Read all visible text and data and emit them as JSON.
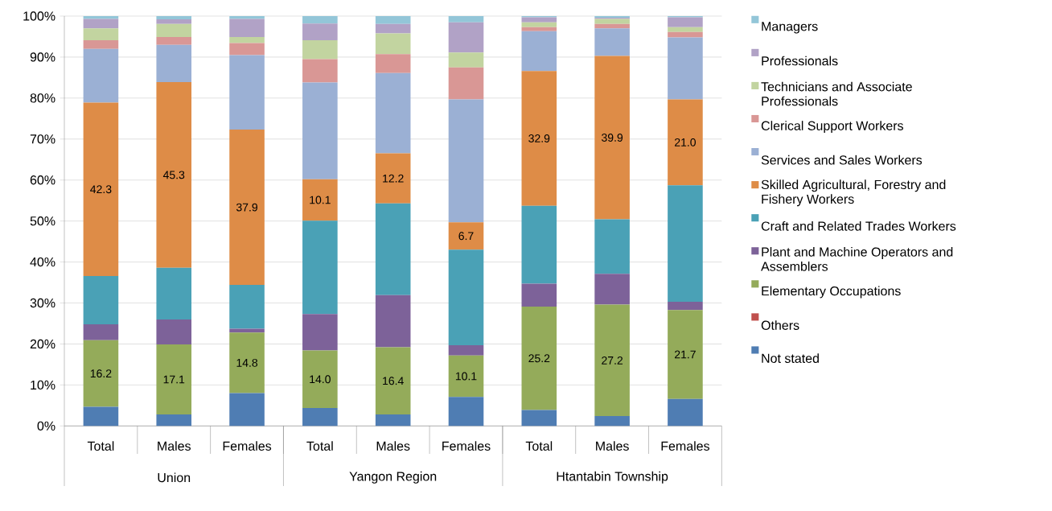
{
  "chart_data": {
    "type": "bar",
    "stacked": true,
    "categories": [
      "Total",
      "Males",
      "Females",
      "Total",
      "Males",
      "Females",
      "Total",
      "Males",
      "Females"
    ],
    "annotations": [
      "Union",
      "Yangon Region",
      "Htantabin Township"
    ],
    "ylim": [
      0,
      100
    ],
    "yticks": [
      {
        "value": 0,
        "label": "0%"
      },
      {
        "value": 10,
        "label": "10%"
      },
      {
        "value": 20,
        "label": "20%"
      },
      {
        "value": 30,
        "label": "30%"
      },
      {
        "value": 40,
        "label": "40%"
      },
      {
        "value": 50,
        "label": "50%"
      },
      {
        "value": 60,
        "label": "60%"
      },
      {
        "value": 70,
        "label": "70%"
      },
      {
        "value": 80,
        "label": "80%"
      },
      {
        "value": 90,
        "label": "90%"
      },
      {
        "value": 100,
        "label": "100%"
      }
    ],
    "grid": "y",
    "legend": "right",
    "series": [
      {
        "name": "Not stated",
        "color": "#4f7db3",
        "values": [
          4.7,
          2.8,
          8.0,
          4.4,
          2.8,
          7.1,
          3.9,
          2.4,
          6.6
        ]
      },
      {
        "name": "Others",
        "color": "#c0504d",
        "values": [
          0,
          0,
          0,
          0,
          0,
          0,
          0,
          0,
          0
        ]
      },
      {
        "name": "Elementary Occupations",
        "color": "#94ab5a",
        "values": [
          16.2,
          17.1,
          14.8,
          14.0,
          16.4,
          10.1,
          25.2,
          27.2,
          21.7
        ],
        "value_labels": [
          "16.2",
          "17.1",
          "14.8",
          "14.0",
          "16.4",
          "10.1",
          "25.2",
          "27.2",
          "21.7"
        ]
      },
      {
        "name": "Plant and Machine Operators and Assemblers",
        "color": "#7d6299",
        "values": [
          3.9,
          6.1,
          0.9,
          8.9,
          12.7,
          2.5,
          5.6,
          7.5,
          2.0
        ]
      },
      {
        "name": "Craft and Related Trades Workers",
        "color": "#4aa1b6",
        "values": [
          11.8,
          12.6,
          10.7,
          22.8,
          22.4,
          23.3,
          19.0,
          13.3,
          28.4
        ]
      },
      {
        "name": "Skilled Agricultural, Forestry and Fishery Workers",
        "color": "#de8c47",
        "values": [
          42.3,
          45.3,
          37.9,
          10.1,
          12.2,
          6.7,
          32.9,
          39.9,
          21.0
        ],
        "value_labels": [
          "42.3",
          "45.3",
          "37.9",
          "10.1",
          "12.2",
          "6.7",
          "32.9",
          "39.9",
          "21.0"
        ]
      },
      {
        "name": "Services and Sales Workers",
        "color": "#9bb0d4",
        "values": [
          13.1,
          9.1,
          18.2,
          23.6,
          19.6,
          30.0,
          9.7,
          6.7,
          15.1
        ]
      },
      {
        "name": "Clerical Support Workers",
        "color": "#d99795",
        "values": [
          2.1,
          1.9,
          2.9,
          5.7,
          4.6,
          7.8,
          1.0,
          1.1,
          1.3
        ]
      },
      {
        "name": "Technicians and Associate Professionals",
        "color": "#c2d4a0",
        "values": [
          2.9,
          3.2,
          1.5,
          4.6,
          5.1,
          3.6,
          1.2,
          1.2,
          1.2
        ]
      },
      {
        "name": "Professionals",
        "color": "#b1a2c6",
        "values": [
          2.3,
          1.1,
          4.4,
          4.1,
          2.3,
          7.4,
          1.2,
          0.3,
          2.4
        ]
      },
      {
        "name": "Managers",
        "color": "#93c6d8",
        "values": [
          0.7,
          0.8,
          0.7,
          1.8,
          1.9,
          1.5,
          0.3,
          0.4,
          0.3
        ]
      }
    ]
  }
}
